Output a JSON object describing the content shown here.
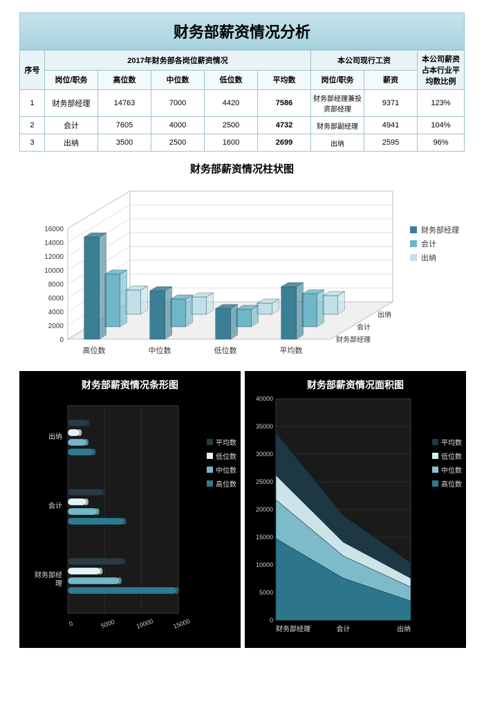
{
  "title": "财务部薪资情况分析",
  "table": {
    "head_seq": "序号",
    "head_group1": "2017年财务部各岗位薪资情况",
    "head_group2": "本公司现行工资",
    "head_ratio_l1": "本公司薪资",
    "head_ratio_l2": "占本行业平",
    "head_ratio_l3": "均数比例",
    "sub": {
      "pos1": "岗位/职务",
      "high": "高位数",
      "mid": "中位数",
      "low": "低位数",
      "avg": "平均数",
      "pos2": "岗位/职务",
      "salary": "薪资"
    },
    "rows": [
      {
        "seq": "1",
        "pos": "财务部经理",
        "high": "14763",
        "mid": "7000",
        "low": "4420",
        "avg": "7586",
        "pos2": "财务部经理兼投资部经理",
        "salary": "9371",
        "ratio": "123%"
      },
      {
        "seq": "2",
        "pos": "会计",
        "high": "7605",
        "mid": "4000",
        "low": "2500",
        "avg": "4732",
        "pos2": "财务部副经理",
        "salary": "4941",
        "ratio": "104%"
      },
      {
        "seq": "3",
        "pos": "出纳",
        "high": "3500",
        "mid": "2500",
        "low": "1600",
        "avg": "2699",
        "pos2": "出纳",
        "salary": "2595",
        "ratio": "96%"
      }
    ]
  },
  "chart_col3d": {
    "type": "3d-bar",
    "title": "财务部薪资情况柱状图",
    "x_labels": [
      "高位数",
      "中位数",
      "低位数",
      "平均数"
    ],
    "depth_labels": [
      "财务部经理",
      "会计",
      "出纳"
    ],
    "series": {
      "财务部经理": [
        14763,
        7000,
        4420,
        7586
      ],
      "会计": [
        7605,
        4000,
        2500,
        4732
      ],
      "出纳": [
        3500,
        2500,
        1600,
        2699
      ]
    },
    "colors": {
      "财务部经理": "#3b7f95",
      "会计": "#6fb6c8",
      "出纳": "#c1e0e8"
    },
    "ylim": [
      0,
      16000
    ],
    "ytick_step": 2000,
    "background": "#ffffff",
    "grid_color": "#bfbfbf",
    "font_size": 11
  },
  "chart_bar_dark": {
    "type": "3d-horizontal-bar",
    "title": "财务部薪资情况条形图",
    "categories": [
      "出纳",
      "会计",
      "财务部经理"
    ],
    "series_order": [
      "平均数",
      "低位数",
      "中位数",
      "高位数"
    ],
    "series": {
      "平均数": [
        2699,
        4732,
        7586
      ],
      "低位数": [
        1600,
        2500,
        4420
      ],
      "中位数": [
        2500,
        4000,
        7000
      ],
      "高位数": [
        3500,
        7605,
        14763
      ]
    },
    "colors": {
      "平均数": "#2a3a44",
      "低位数": "#e4f3f7",
      "中位数": "#72b7ca",
      "高位数": "#2d7a91"
    },
    "xlim": [
      0,
      15000
    ],
    "xtick_step": 5000,
    "background": "#000000",
    "grid_color": "#3a3a3a",
    "font_size": 10
  },
  "chart_area_dark": {
    "type": "stacked-area",
    "title": "财务部薪资情况面积图",
    "x_labels": [
      "财务部经理",
      "会计",
      "出纳"
    ],
    "series_order": [
      "平均数",
      "低位数",
      "中位数",
      "高位数"
    ],
    "series": {
      "高位数": [
        14763,
        7605,
        3500
      ],
      "中位数": [
        7000,
        4000,
        2500
      ],
      "低位数": [
        4420,
        2500,
        1600
      ],
      "平均数": [
        7586,
        4732,
        2699
      ]
    },
    "stacked_totals": [
      33769,
      18837,
      10299
    ],
    "colors": {
      "平均数": "#1e3a45",
      "低位数": "#d7eef4",
      "中位数": "#84c4d4",
      "高位数": "#2d7a91"
    },
    "ylim": [
      0,
      40000
    ],
    "ytick_step": 5000,
    "background": "#000000",
    "grid_color": "#3a3a3a",
    "font_size": 10
  },
  "legend_labels": {
    "mgr": "财务部经理",
    "acc": "会计",
    "cash": "出纳",
    "avg": "平均数",
    "low": "低位数",
    "mid": "中位数",
    "high": "高位数"
  }
}
